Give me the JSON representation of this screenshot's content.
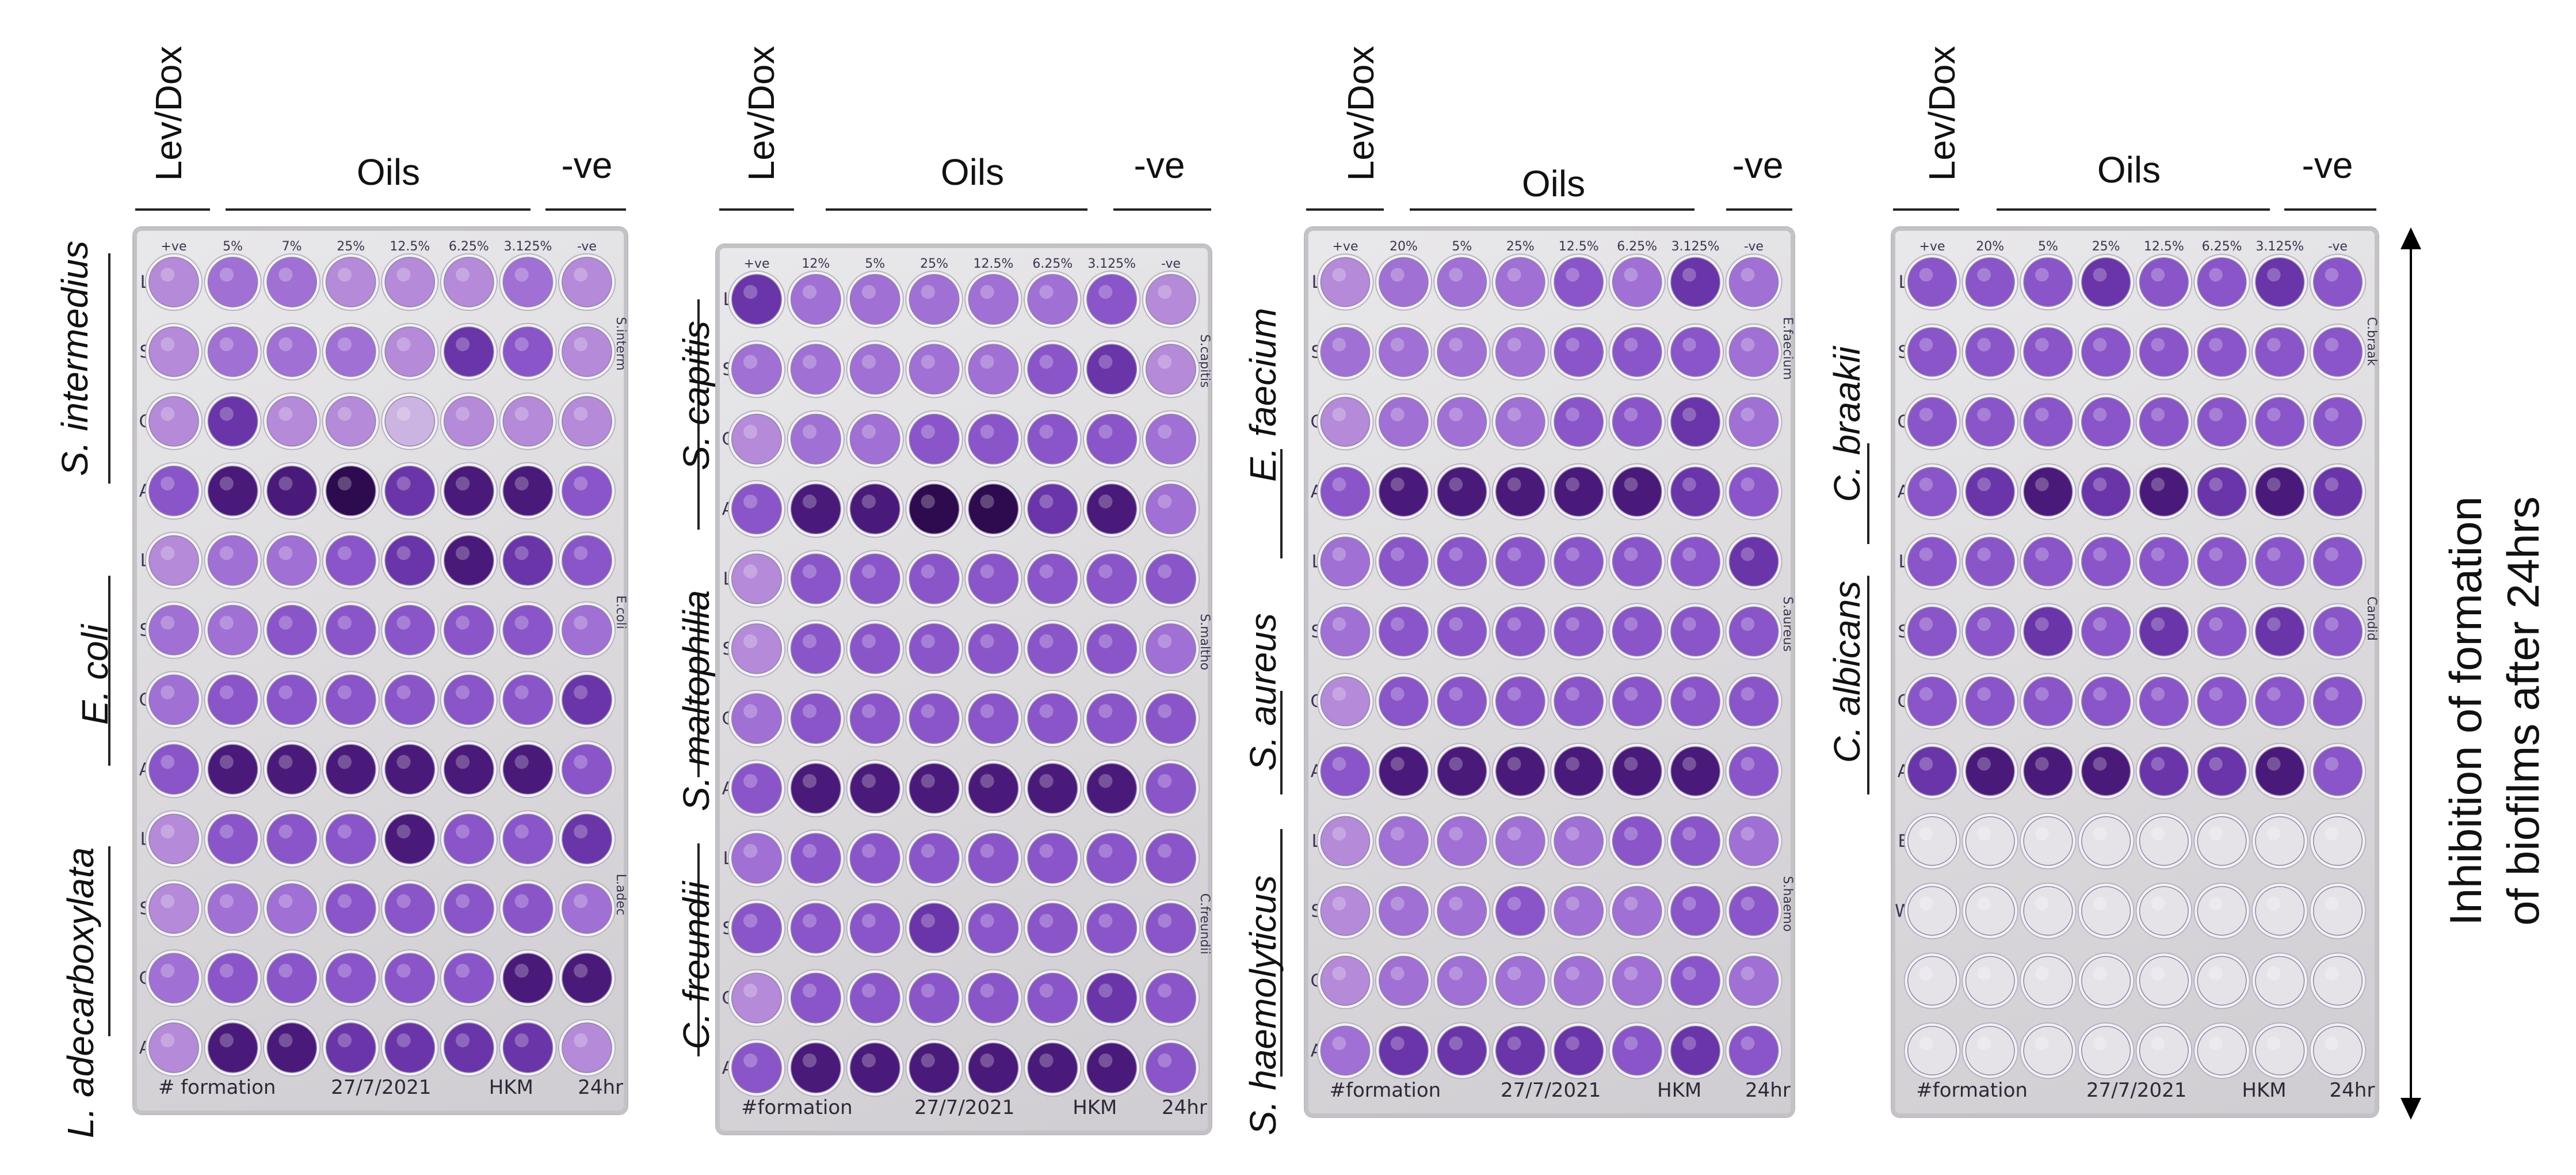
{
  "plates": [
    {
      "lev_dox": "Lev/Dox",
      "oils": "Oils",
      "neg": "-ve",
      "species_top": "S. intermedius",
      "species_mid": "E. coli",
      "species_bot": "L. adecarboxylata",
      "top_labels": [
        "+ve",
        "5%",
        "7%",
        "25%",
        "12.5%",
        "6.25%",
        "3.125%",
        "-ve"
      ],
      "row_labels": [
        "L",
        "S",
        "C",
        "A",
        "L",
        "S",
        "C",
        "A",
        "L",
        "S",
        "C",
        "A"
      ],
      "right_labels": [
        "S.interm",
        "E.coli",
        "L.adec"
      ],
      "footer": [
        "# formation",
        "27/7/2021",
        "HKM",
        "24hr"
      ],
      "intensity": [
        [
          3,
          4,
          4,
          3,
          3,
          3,
          4,
          3
        ],
        [
          3,
          4,
          4,
          4,
          3,
          6,
          5,
          3
        ],
        [
          3,
          6,
          3,
          3,
          2,
          3,
          3,
          3
        ],
        [
          5,
          7,
          7,
          8,
          6,
          7,
          7,
          5
        ],
        [
          3,
          4,
          4,
          5,
          6,
          7,
          6,
          5
        ],
        [
          4,
          4,
          5,
          5,
          5,
          5,
          5,
          4
        ],
        [
          4,
          5,
          5,
          5,
          5,
          5,
          5,
          6
        ],
        [
          5,
          7,
          7,
          7,
          7,
          7,
          7,
          5
        ],
        [
          3,
          5,
          5,
          5,
          7,
          5,
          5,
          6
        ],
        [
          3,
          4,
          4,
          5,
          5,
          5,
          5,
          4
        ],
        [
          4,
          5,
          5,
          5,
          5,
          5,
          7,
          7
        ],
        [
          3,
          7,
          7,
          6,
          6,
          6,
          6,
          3
        ]
      ]
    },
    {
      "lev_dox": "Lev/Dox",
      "oils": "Oils",
      "neg": "-ve",
      "species_top": "S. capitis",
      "species_mid": "S. maltophilia",
      "species_bot": "C. freundii",
      "top_labels": [
        "+ve",
        "12%",
        "5%",
        "25%",
        "12.5%",
        "6.25%",
        "3.125%",
        "-ve"
      ],
      "row_labels": [
        "L",
        "S",
        "C",
        "A",
        "L",
        "S",
        "C",
        "A",
        "L",
        "S",
        "C",
        "A"
      ],
      "right_labels": [
        "S.capitis",
        "S.maltho",
        "C.freundii"
      ],
      "footer": [
        "#formation",
        "27/7/2021",
        "HKM",
        "24hr"
      ],
      "intensity": [
        [
          6,
          4,
          4,
          4,
          4,
          4,
          5,
          3
        ],
        [
          4,
          4,
          4,
          4,
          4,
          5,
          6,
          3
        ],
        [
          3,
          4,
          4,
          5,
          5,
          5,
          5,
          4
        ],
        [
          5,
          7,
          7,
          8,
          8,
          6,
          7,
          4
        ],
        [
          3,
          5,
          5,
          5,
          5,
          5,
          5,
          5
        ],
        [
          3,
          5,
          5,
          5,
          5,
          5,
          5,
          4
        ],
        [
          4,
          5,
          5,
          5,
          5,
          5,
          5,
          5
        ],
        [
          5,
          7,
          7,
          7,
          7,
          7,
          7,
          5
        ],
        [
          4,
          5,
          5,
          5,
          5,
          5,
          5,
          5
        ],
        [
          5,
          5,
          5,
          6,
          5,
          5,
          5,
          5
        ],
        [
          3,
          5,
          5,
          5,
          5,
          5,
          6,
          5
        ],
        [
          5,
          7,
          7,
          7,
          7,
          7,
          7,
          5
        ]
      ]
    },
    {
      "lev_dox": "Lev/Dox",
      "oils": "Oils",
      "neg": "-ve",
      "species_top": "E. faecium",
      "species_mid": "S. aureus",
      "species_bot": "S. haemolyticus",
      "top_labels": [
        "+ve",
        "20%",
        "5%",
        "25%",
        "12.5%",
        "6.25%",
        "3.125%",
        "-ve"
      ],
      "row_labels": [
        "L",
        "S",
        "C",
        "A",
        "L",
        "S",
        "C",
        "A",
        "L",
        "S",
        "C",
        "A"
      ],
      "right_labels": [
        "E.faecium",
        "S.aureus",
        "S.haemo"
      ],
      "footer": [
        "#formation",
        "27/7/2021",
        "HKM",
        "24hr"
      ],
      "intensity": [
        [
          3,
          4,
          4,
          4,
          5,
          4,
          6,
          4
        ],
        [
          4,
          4,
          4,
          4,
          5,
          5,
          5,
          4
        ],
        [
          3,
          4,
          4,
          4,
          5,
          5,
          6,
          4
        ],
        [
          5,
          7,
          7,
          7,
          7,
          7,
          6,
          5
        ],
        [
          4,
          5,
          5,
          5,
          5,
          5,
          5,
          6
        ],
        [
          4,
          5,
          5,
          5,
          5,
          5,
          5,
          5
        ],
        [
          3,
          5,
          5,
          5,
          5,
          5,
          5,
          5
        ],
        [
          5,
          7,
          7,
          7,
          7,
          7,
          7,
          5
        ],
        [
          3,
          4,
          4,
          4,
          4,
          5,
          5,
          4
        ],
        [
          3,
          4,
          4,
          5,
          4,
          4,
          5,
          5
        ],
        [
          3,
          4,
          4,
          4,
          4,
          4,
          5,
          4
        ],
        [
          4,
          6,
          6,
          6,
          6,
          5,
          6,
          5
        ]
      ]
    },
    {
      "lev_dox": "Lev/Dox",
      "oils": "Oils",
      "neg": "-ve",
      "species_top": "C. braakii",
      "species_mid": "C. albicans",
      "species_bot": "",
      "top_labels": [
        "+ve",
        "20%",
        "5%",
        "25%",
        "12.5%",
        "6.25%",
        "3.125%",
        "-ve"
      ],
      "row_labels": [
        "L",
        "S",
        "C",
        "A",
        "L",
        "S",
        "C",
        "A",
        "E",
        "W",
        "",
        ""
      ],
      "right_labels": [
        "C.braak",
        "Candid",
        ""
      ],
      "footer": [
        "#formation",
        "27/7/2021",
        "HKM",
        "24hr"
      ],
      "intensity": [
        [
          5,
          5,
          5,
          6,
          5,
          5,
          6,
          5
        ],
        [
          5,
          5,
          5,
          5,
          5,
          5,
          5,
          5
        ],
        [
          5,
          5,
          5,
          5,
          5,
          5,
          5,
          5
        ],
        [
          5,
          6,
          7,
          6,
          7,
          6,
          7,
          6
        ],
        [
          5,
          5,
          5,
          5,
          5,
          5,
          5,
          5
        ],
        [
          5,
          5,
          6,
          5,
          6,
          5,
          6,
          5
        ],
        [
          5,
          5,
          5,
          5,
          5,
          5,
          5,
          5
        ],
        [
          6,
          7,
          7,
          7,
          6,
          6,
          7,
          5
        ],
        [
          0,
          0,
          0,
          0,
          0,
          0,
          0,
          0
        ],
        [
          0,
          0,
          0,
          0,
          0,
          0,
          0,
          0
        ],
        [
          0,
          0,
          0,
          0,
          0,
          0,
          0,
          0
        ],
        [
          0,
          0,
          0,
          0,
          0,
          0,
          0,
          0
        ]
      ]
    }
  ],
  "side_title": {
    "line1": "Inhibition of formation",
    "line2": "of biofilms after 24hrs"
  },
  "colors": {
    "well_levels": [
      "#e6e3e8",
      "#ddd4e6",
      "#cbb3e2",
      "#b58ad9",
      "#a070d4",
      "#8a55c8",
      "#6a35a8",
      "#4a1a7a",
      "#2e0a4f"
    ],
    "plate": "#dcdadd",
    "rim": "#f4f1f7"
  }
}
